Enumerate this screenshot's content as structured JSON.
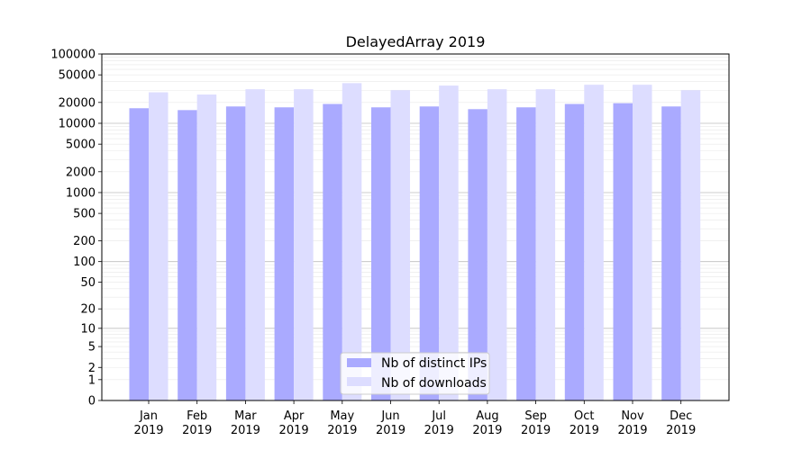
{
  "chart_data": {
    "type": "bar",
    "title": "DelayedArray 2019",
    "xlabel": "",
    "ylabel": "",
    "yscale": "log",
    "ylim": [
      0,
      100000
    ],
    "yticks": [
      {
        "value": 0,
        "label": "0"
      },
      {
        "value": 1,
        "label": "1"
      },
      {
        "value": 2,
        "label": "2"
      },
      {
        "value": 5,
        "label": "5"
      },
      {
        "value": 10,
        "label": "10"
      },
      {
        "value": 20,
        "label": "20"
      },
      {
        "value": 50,
        "label": "50"
      },
      {
        "value": 100,
        "label": "100"
      },
      {
        "value": 200,
        "label": "200"
      },
      {
        "value": 500,
        "label": "500"
      },
      {
        "value": 1000,
        "label": "1000"
      },
      {
        "value": 2000,
        "label": "2000"
      },
      {
        "value": 5000,
        "label": "5000"
      },
      {
        "value": 10000,
        "label": "10000"
      },
      {
        "value": 20000,
        "label": "20000"
      },
      {
        "value": 50000,
        "label": "50000"
      },
      {
        "value": 100000,
        "label": "100000"
      }
    ],
    "categories": [
      [
        "Jan",
        "2019"
      ],
      [
        "Feb",
        "2019"
      ],
      [
        "Mar",
        "2019"
      ],
      [
        "Apr",
        "2019"
      ],
      [
        "May",
        "2019"
      ],
      [
        "Jun",
        "2019"
      ],
      [
        "Jul",
        "2019"
      ],
      [
        "Aug",
        "2019"
      ],
      [
        "Sep",
        "2019"
      ],
      [
        "Oct",
        "2019"
      ],
      [
        "Nov",
        "2019"
      ],
      [
        "Dec",
        "2019"
      ]
    ],
    "series": [
      {
        "name": "Nb of distinct IPs",
        "color": "#aaaaff",
        "values": [
          16500,
          15500,
          17500,
          17000,
          19000,
          17000,
          17500,
          16000,
          17000,
          19000,
          19500,
          17500
        ]
      },
      {
        "name": "Nb of downloads",
        "color": "#ddddff",
        "values": [
          28000,
          26000,
          31000,
          31000,
          38000,
          30000,
          35000,
          31000,
          31000,
          36000,
          36000,
          30000
        ]
      }
    ],
    "grid": true,
    "legend": "bottom-center"
  }
}
